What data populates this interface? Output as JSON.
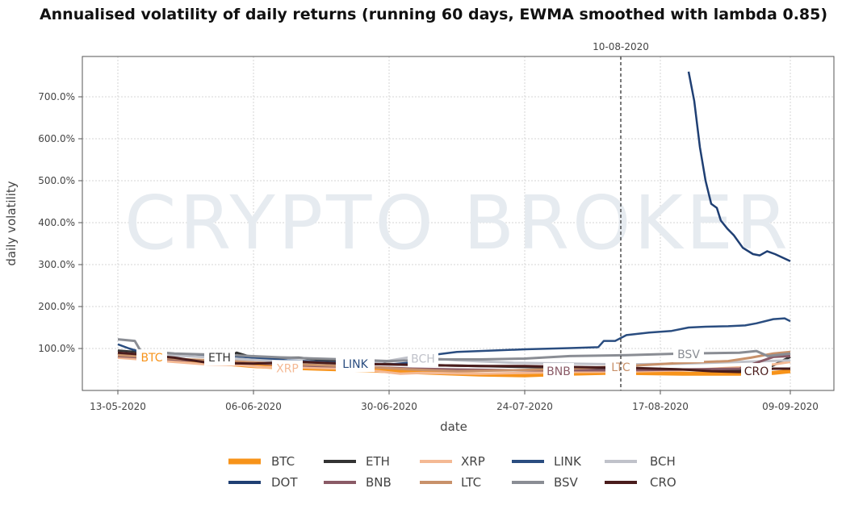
{
  "chart_data": {
    "type": "line",
    "title": "Annualised volatility of daily returns (running 60 days, EWMA smoothed with lambda 0.85)",
    "xlabel": "date",
    "ylabel": "daily volatility",
    "watermark": "CRYPTO BROKER",
    "x_unit": "days since 13-05-2020",
    "xlim": [
      -6,
      126
    ],
    "ylim": [
      0,
      780
    ],
    "x_ticks": [
      {
        "day": 0,
        "label": "13-05-2020"
      },
      {
        "day": 24,
        "label": "06-06-2020"
      },
      {
        "day": 48,
        "label": "30-06-2020"
      },
      {
        "day": 72,
        "label": "24-07-2020"
      },
      {
        "day": 96,
        "label": "17-08-2020"
      },
      {
        "day": 119,
        "label": "09-09-2020"
      }
    ],
    "y_ticks": [
      {
        "value": 100,
        "label": "100.0%"
      },
      {
        "value": 200,
        "label": "200.0%"
      },
      {
        "value": 300,
        "label": "300.0%"
      },
      {
        "value": 400,
        "label": "400.0%"
      },
      {
        "value": 500,
        "label": "500.0%"
      },
      {
        "value": 600,
        "label": "600.0%"
      },
      {
        "value": 700,
        "label": "700.0%"
      }
    ],
    "grid": true,
    "annotation": {
      "day": 89,
      "label": "10-08-2020"
    },
    "legend_placement": "bottom",
    "series": [
      {
        "name": "BTC",
        "color": "#f7931a",
        "width": 5,
        "label_day": 6,
        "points": [
          [
            0,
            88
          ],
          [
            3,
            87
          ],
          [
            5,
            82
          ],
          [
            12,
            72
          ],
          [
            18,
            65
          ],
          [
            24,
            58
          ],
          [
            30,
            54
          ],
          [
            40,
            50
          ],
          [
            48,
            46
          ],
          [
            56,
            42
          ],
          [
            64,
            38
          ],
          [
            72,
            36
          ],
          [
            80,
            40
          ],
          [
            86,
            42
          ],
          [
            90,
            42
          ],
          [
            100,
            40
          ],
          [
            110,
            40
          ],
          [
            116,
            42
          ],
          [
            119,
            46
          ]
        ]
      },
      {
        "name": "ETH",
        "color": "#333333",
        "width": 3,
        "label_day": 18,
        "points": [
          [
            0,
            95
          ],
          [
            3,
            92
          ],
          [
            8,
            85
          ],
          [
            14,
            82
          ],
          [
            20,
            80
          ],
          [
            21,
            90
          ],
          [
            23,
            82
          ],
          [
            26,
            78
          ],
          [
            32,
            78
          ],
          [
            38,
            70
          ],
          [
            44,
            65
          ],
          [
            50,
            62
          ],
          [
            56,
            60
          ],
          [
            64,
            58
          ],
          [
            72,
            56
          ],
          [
            80,
            54
          ],
          [
            90,
            52
          ],
          [
            100,
            50
          ],
          [
            110,
            48
          ],
          [
            114,
            50
          ],
          [
            116,
            60
          ],
          [
            119,
            80
          ]
        ]
      },
      {
        "name": "XRP",
        "color": "#f4b994",
        "width": 3,
        "label_day": 30,
        "points": [
          [
            0,
            78
          ],
          [
            4,
            74
          ],
          [
            10,
            68
          ],
          [
            16,
            62
          ],
          [
            22,
            60
          ],
          [
            26,
            55
          ],
          [
            32,
            55
          ],
          [
            40,
            52
          ],
          [
            46,
            46
          ],
          [
            50,
            40
          ],
          [
            54,
            42
          ],
          [
            64,
            40
          ],
          [
            72,
            42
          ],
          [
            80,
            44
          ],
          [
            90,
            45
          ],
          [
            100,
            48
          ],
          [
            110,
            55
          ],
          [
            116,
            62
          ],
          [
            119,
            68
          ]
        ]
      },
      {
        "name": "LINK",
        "color": "#2a4d80",
        "width": 2.5,
        "label_day": 42,
        "points": [
          [
            0,
            110
          ],
          [
            2,
            100
          ],
          [
            4,
            92
          ],
          [
            10,
            88
          ],
          [
            20,
            82
          ],
          [
            30,
            72
          ],
          [
            40,
            66
          ],
          [
            48,
            62
          ],
          [
            53,
            68
          ],
          [
            56,
            85
          ],
          [
            60,
            92
          ],
          [
            66,
            95
          ],
          [
            72,
            98
          ],
          [
            80,
            101
          ],
          [
            85,
            103
          ],
          [
            86,
            118
          ],
          [
            88,
            118
          ],
          [
            90,
            132
          ],
          [
            94,
            138
          ],
          [
            98,
            142
          ],
          [
            101,
            150
          ],
          [
            104,
            152
          ],
          [
            108,
            153
          ],
          [
            111,
            155
          ],
          [
            113,
            160
          ],
          [
            116,
            170
          ],
          [
            118,
            172
          ],
          [
            119,
            165
          ]
        ]
      },
      {
        "name": "BCH",
        "color": "#c0c2ca",
        "width": 3,
        "label_day": 54,
        "points": [
          [
            0,
            90
          ],
          [
            4,
            86
          ],
          [
            12,
            82
          ],
          [
            20,
            76
          ],
          [
            28,
            70
          ],
          [
            36,
            66
          ],
          [
            44,
            62
          ],
          [
            52,
            80
          ],
          [
            54,
            78
          ],
          [
            60,
            72
          ],
          [
            70,
            66
          ],
          [
            80,
            64
          ],
          [
            90,
            62
          ],
          [
            100,
            64
          ],
          [
            110,
            68
          ],
          [
            119,
            72
          ]
        ]
      },
      {
        "name": "DOT",
        "color": "#1f3f73",
        "width": 2.5,
        "label_day": null,
        "points": [
          [
            101,
            760
          ],
          [
            102,
            690
          ],
          [
            103,
            580
          ],
          [
            104,
            500
          ],
          [
            105,
            445
          ],
          [
            106,
            435
          ],
          [
            106.7,
            405
          ],
          [
            107.9,
            385
          ],
          [
            109,
            370
          ],
          [
            110.6,
            340
          ],
          [
            112.4,
            325
          ],
          [
            113.6,
            322
          ],
          [
            114.9,
            332
          ],
          [
            116.3,
            325
          ],
          [
            119,
            308
          ]
        ]
      },
      {
        "name": "BNB",
        "color": "#8a5a66",
        "width": 3,
        "label_day": 78,
        "points": [
          [
            0,
            82
          ],
          [
            5,
            78
          ],
          [
            12,
            72
          ],
          [
            20,
            68
          ],
          [
            28,
            62
          ],
          [
            36,
            58
          ],
          [
            44,
            56
          ],
          [
            52,
            52
          ],
          [
            60,
            50
          ],
          [
            70,
            48
          ],
          [
            80,
            48
          ],
          [
            90,
            48
          ],
          [
            100,
            50
          ],
          [
            110,
            52
          ],
          [
            116,
            80
          ],
          [
            119,
            82
          ]
        ]
      },
      {
        "name": "LTC",
        "color": "#c8916a",
        "width": 3,
        "label_day": 89,
        "points": [
          [
            0,
            84
          ],
          [
            5,
            80
          ],
          [
            12,
            74
          ],
          [
            20,
            70
          ],
          [
            28,
            64
          ],
          [
            36,
            60
          ],
          [
            44,
            56
          ],
          [
            52,
            50
          ],
          [
            60,
            46
          ],
          [
            70,
            48
          ],
          [
            80,
            52
          ],
          [
            90,
            58
          ],
          [
            100,
            66
          ],
          [
            108,
            70
          ],
          [
            112,
            78
          ],
          [
            116,
            88
          ],
          [
            119,
            92
          ]
        ]
      },
      {
        "name": "BSV",
        "color": "#8a8d94",
        "width": 3,
        "label_day": 101,
        "points": [
          [
            0,
            122
          ],
          [
            3,
            118
          ],
          [
            4,
            95
          ],
          [
            10,
            88
          ],
          [
            20,
            84
          ],
          [
            30,
            78
          ],
          [
            40,
            74
          ],
          [
            48,
            70
          ],
          [
            56,
            74
          ],
          [
            64,
            74
          ],
          [
            72,
            76
          ],
          [
            80,
            82
          ],
          [
            90,
            84
          ],
          [
            100,
            88
          ],
          [
            110,
            90
          ],
          [
            113,
            94
          ],
          [
            115,
            82
          ],
          [
            119,
            88
          ]
        ]
      },
      {
        "name": "CRO",
        "color": "#4a1c1c",
        "width": 3,
        "label_day": 113,
        "points": [
          [
            0,
            90
          ],
          [
            4,
            86
          ],
          [
            10,
            78
          ],
          [
            16,
            66
          ],
          [
            24,
            64
          ],
          [
            32,
            68
          ],
          [
            40,
            64
          ],
          [
            48,
            62
          ],
          [
            56,
            60
          ],
          [
            64,
            58
          ],
          [
            72,
            58
          ],
          [
            80,
            56
          ],
          [
            90,
            54
          ],
          [
            100,
            50
          ],
          [
            105,
            46
          ],
          [
            110,
            44
          ],
          [
            116,
            52
          ],
          [
            119,
            52
          ]
        ]
      }
    ]
  }
}
